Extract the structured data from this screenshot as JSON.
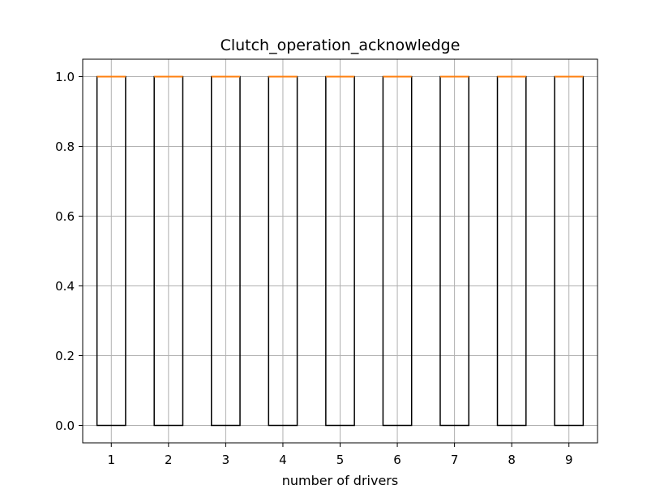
{
  "chart_data": {
    "type": "box",
    "title": "Clutch_operation_acknowledge",
    "xlabel": "number of drivers",
    "ylabel": "",
    "categories": [
      "1",
      "2",
      "3",
      "4",
      "5",
      "6",
      "7",
      "8",
      "9"
    ],
    "boxes": [
      {
        "category": "1",
        "q1": 0.0,
        "median": 1.0,
        "q3": 1.0,
        "whisker_low": 0.0,
        "whisker_high": 1.0
      },
      {
        "category": "2",
        "q1": 0.0,
        "median": 1.0,
        "q3": 1.0,
        "whisker_low": 0.0,
        "whisker_high": 1.0
      },
      {
        "category": "3",
        "q1": 0.0,
        "median": 1.0,
        "q3": 1.0,
        "whisker_low": 0.0,
        "whisker_high": 1.0
      },
      {
        "category": "4",
        "q1": 0.0,
        "median": 1.0,
        "q3": 1.0,
        "whisker_low": 0.0,
        "whisker_high": 1.0
      },
      {
        "category": "5",
        "q1": 0.0,
        "median": 1.0,
        "q3": 1.0,
        "whisker_low": 0.0,
        "whisker_high": 1.0
      },
      {
        "category": "6",
        "q1": 0.0,
        "median": 1.0,
        "q3": 1.0,
        "whisker_low": 0.0,
        "whisker_high": 1.0
      },
      {
        "category": "7",
        "q1": 0.0,
        "median": 1.0,
        "q3": 1.0,
        "whisker_low": 0.0,
        "whisker_high": 1.0
      },
      {
        "category": "8",
        "q1": 0.0,
        "median": 1.0,
        "q3": 1.0,
        "whisker_low": 0.0,
        "whisker_high": 1.0
      },
      {
        "category": "9",
        "q1": 0.0,
        "median": 1.0,
        "q3": 1.0,
        "whisker_low": 0.0,
        "whisker_high": 1.0
      }
    ],
    "ylim": [
      -0.05,
      1.05
    ],
    "xlim": [
      0.5,
      9.5
    ],
    "yticks": [
      "0.0",
      "0.2",
      "0.4",
      "0.6",
      "0.8",
      "1.0"
    ],
    "grid": true,
    "colors": {
      "box": "#000000",
      "median": "#ff7f0e",
      "grid": "#b0b0b0"
    }
  }
}
